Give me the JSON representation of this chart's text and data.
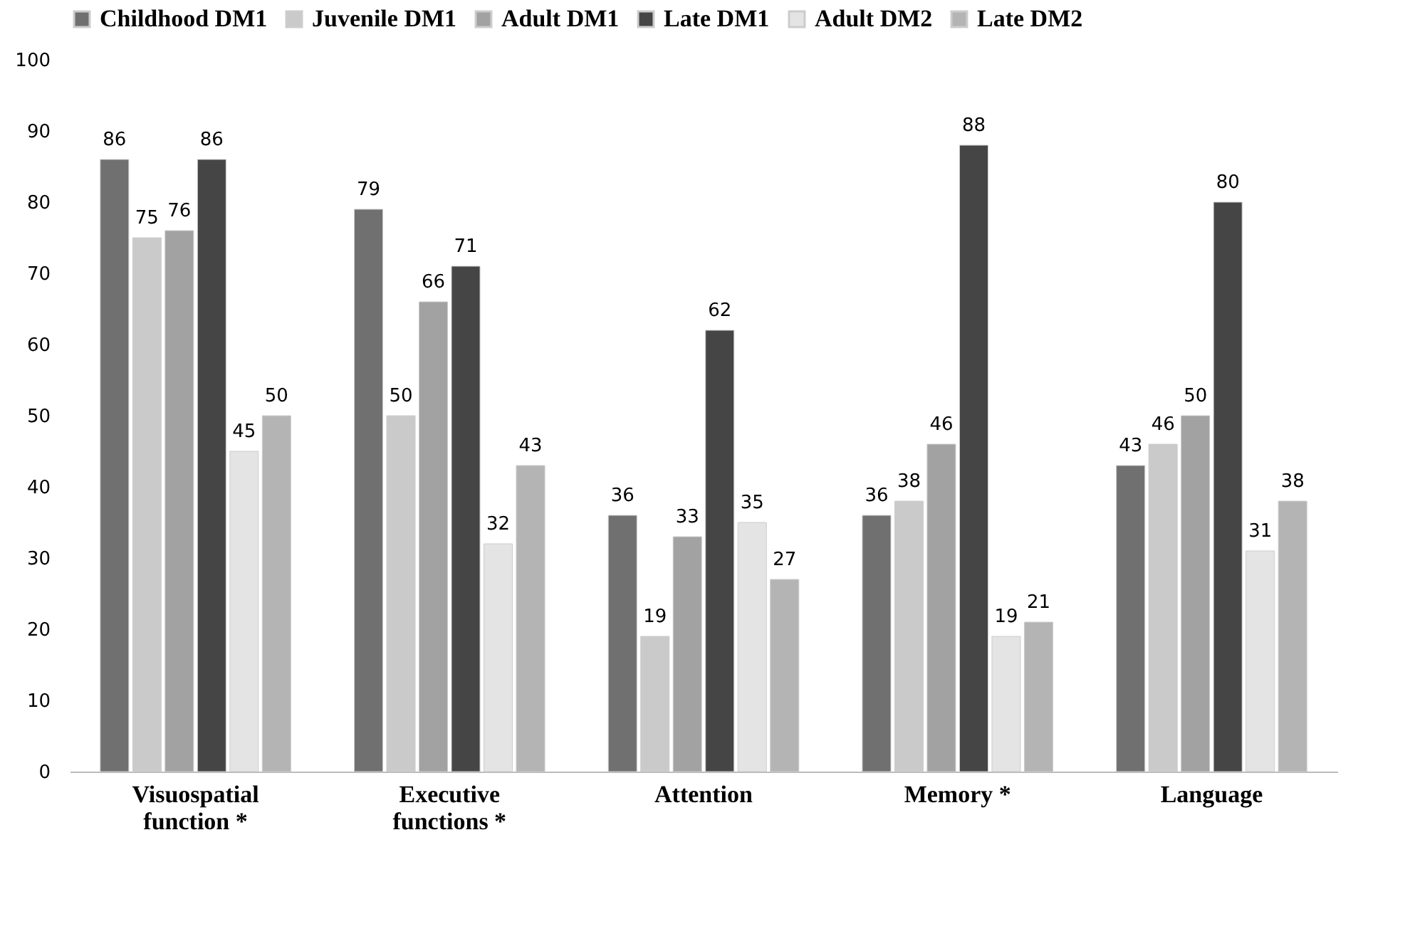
{
  "chart_data": {
    "type": "bar",
    "categories": [
      "Visuospatial function *",
      "Executive functions *",
      "Attention",
      "Memory *",
      "Language"
    ],
    "series": [
      {
        "name": "Childhood DM1",
        "color": "#707070",
        "values": [
          86,
          79,
          36,
          36,
          43
        ]
      },
      {
        "name": "Juvenile DM1",
        "color": "#cacaca",
        "values": [
          75,
          50,
          19,
          38,
          46
        ]
      },
      {
        "name": "Adult DM1",
        "color": "#a2a2a2",
        "values": [
          76,
          66,
          33,
          46,
          50
        ]
      },
      {
        "name": "Late DM1",
        "color": "#454545",
        "values": [
          86,
          71,
          62,
          88,
          80
        ]
      },
      {
        "name": "Adult DM2",
        "color": "#e4e4e4",
        "values": [
          45,
          32,
          35,
          19,
          31
        ]
      },
      {
        "name": "Late DM2",
        "color": "#b4b4b4",
        "values": [
          50,
          43,
          27,
          21,
          38
        ]
      }
    ],
    "ylim": [
      0,
      100
    ],
    "yticks": [
      0,
      10,
      20,
      30,
      40,
      50,
      60,
      70,
      80,
      90,
      100
    ],
    "data_labels": true,
    "legend": "top",
    "grid": false
  }
}
